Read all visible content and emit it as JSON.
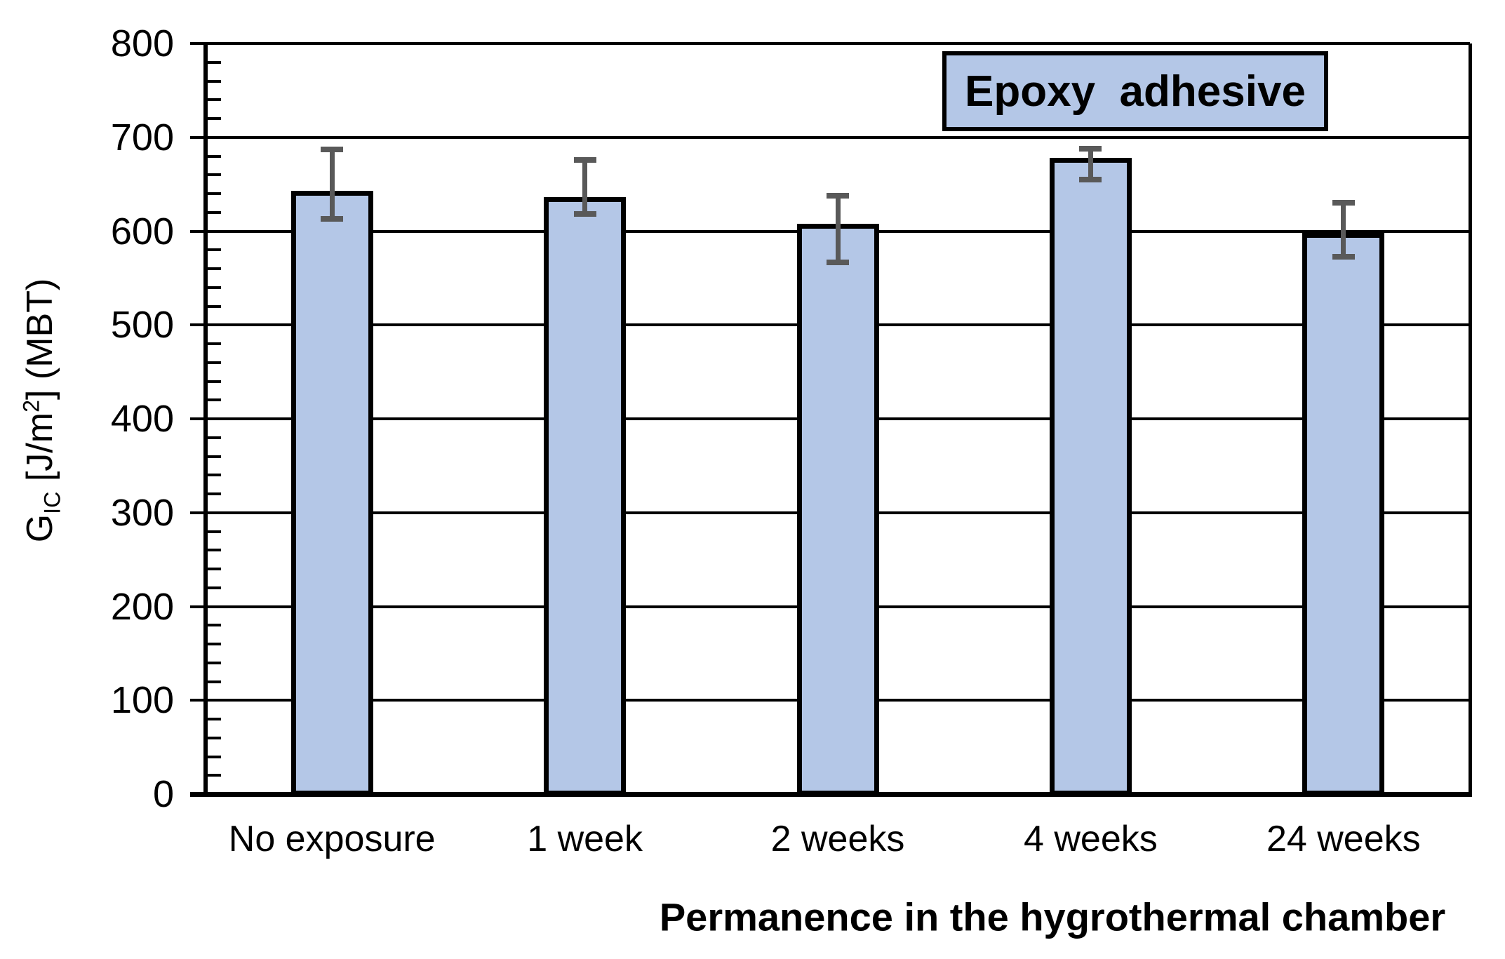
{
  "chart_data": {
    "type": "bar",
    "legend": "Epoxy  adhesive",
    "legend_position": "top-right",
    "xlabel": "Permanence in the hygrothermal chamber",
    "ylabel": {
      "base": "G",
      "sub": "IC",
      "mid": " [J/m",
      "sup": "2",
      "end": "] (MBT)"
    },
    "categories": [
      "No exposure",
      "1 week",
      "2 weeks",
      "4 weeks",
      "24 weeks"
    ],
    "values": [
      640,
      633,
      605,
      675,
      595
    ],
    "error_high": [
      687,
      676,
      638,
      688,
      630
    ],
    "error_low": [
      613,
      618,
      567,
      655,
      573
    ],
    "ylim": [
      0,
      800
    ],
    "y_ticks": [
      0,
      100,
      200,
      300,
      400,
      500,
      600,
      700,
      800
    ],
    "y_major_step": 100,
    "y_minor_step": 20,
    "grid": true,
    "colors": {
      "bar_fill": "#b4c7e7",
      "bar_border": "#000000",
      "error_bar": "#595959",
      "grid": "#000000",
      "background": "#ffffff",
      "text": "#000000"
    }
  }
}
